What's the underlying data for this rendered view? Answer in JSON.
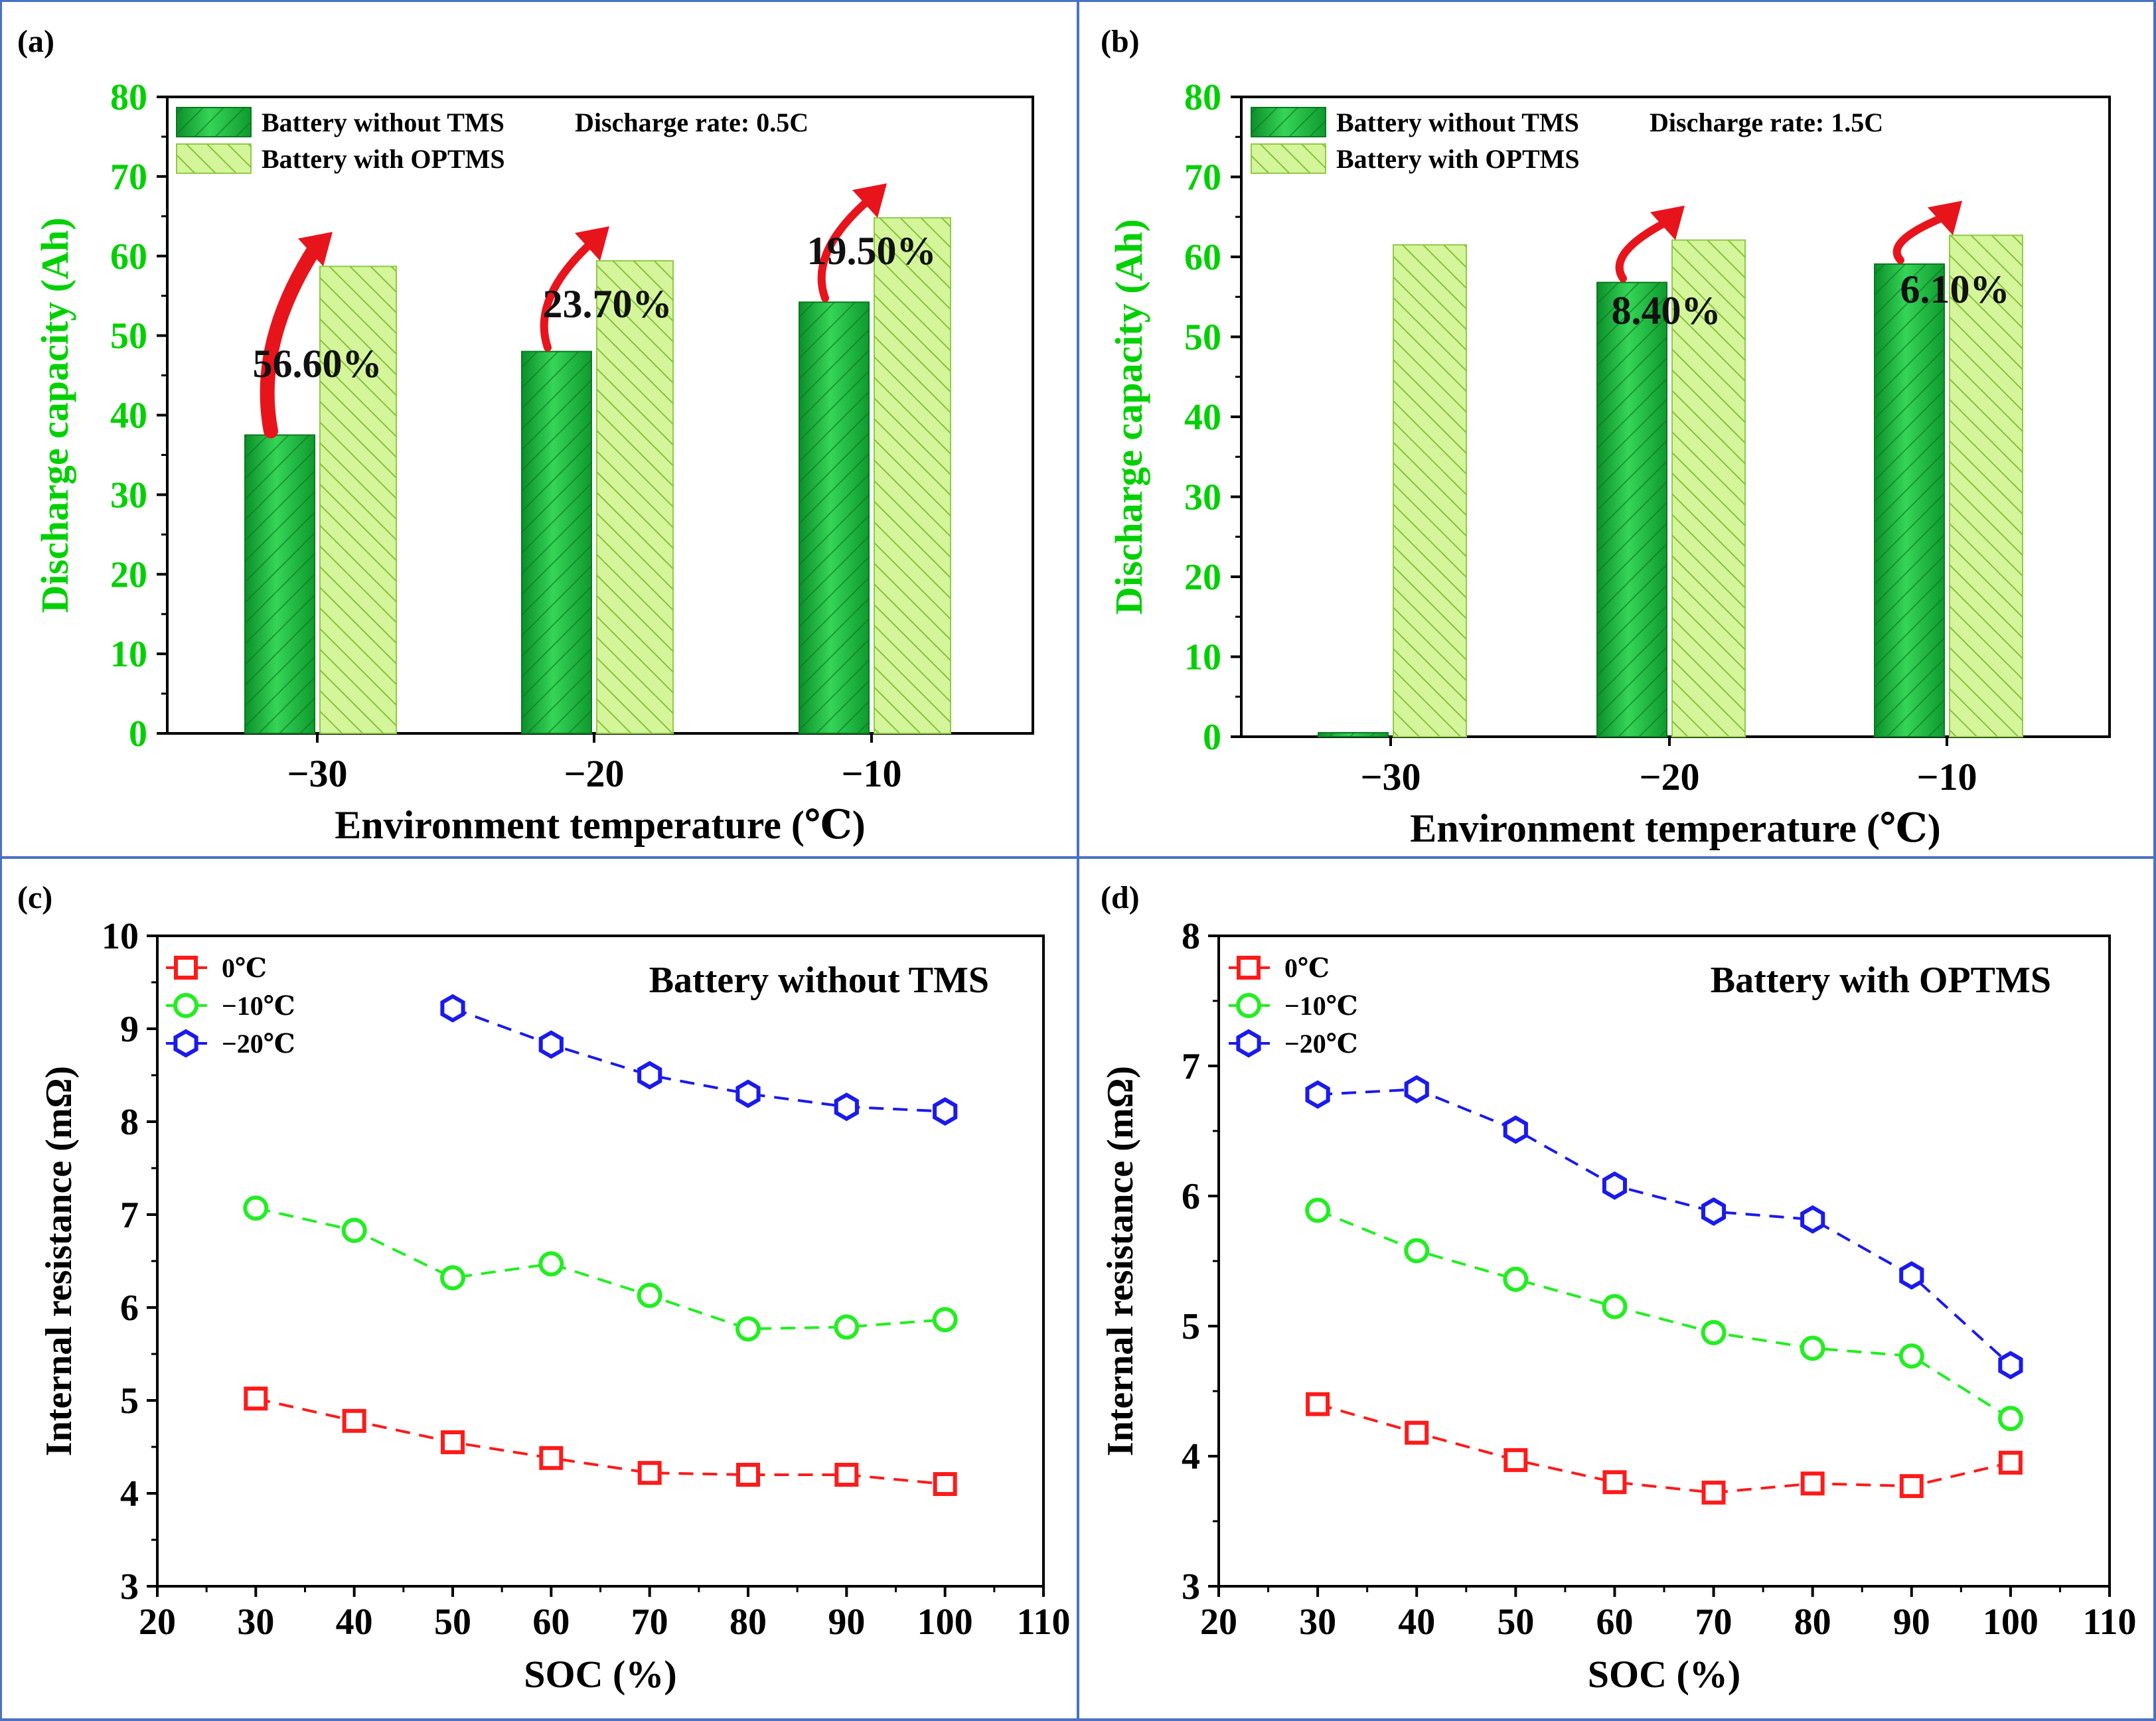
{
  "colors": {
    "panel_border": "#4a72c4",
    "green_axis": "#00d000",
    "bar_dark": "#16b43a",
    "bar_dark_stroke": "#0a7a20",
    "bar_light": "#d4f59a",
    "bar_light_stroke": "#8fcc45",
    "arrow": "#e8141c",
    "s0": "#ff1a1a",
    "s10": "#22ee22",
    "s20": "#1a1aee"
  },
  "chart_data": [
    {
      "id": "a",
      "panel_label": "(a)",
      "type": "bar",
      "categories": [
        "−30",
        "−20",
        "−10"
      ],
      "series": [
        {
          "name": "Battery without TMS",
          "values": [
            37.5,
            48,
            54.2
          ]
        },
        {
          "name": "Battery with OPTMS",
          "values": [
            58.7,
            59.4,
            64.8
          ]
        }
      ],
      "legend_note": "Discharge rate: 0.5C",
      "annotations": [
        "56.60%",
        "23.70%",
        "19.50%"
      ],
      "xlabel": "Environment temperature (℃)",
      "ylabel": "Discharge capacity (Ah)",
      "ylim": [
        0,
        80
      ],
      "yticks": [
        "0",
        "10",
        "20",
        "30",
        "40",
        "50",
        "60",
        "70",
        "80"
      ]
    },
    {
      "id": "b",
      "panel_label": "(b)",
      "type": "bar",
      "categories": [
        "−30",
        "−20",
        "−10"
      ],
      "series": [
        {
          "name": "Battery without TMS",
          "values": [
            0.5,
            56.8,
            59.1
          ]
        },
        {
          "name": "Battery with OPTMS",
          "values": [
            61.5,
            62.1,
            62.7
          ]
        }
      ],
      "legend_note": "Discharge rate: 1.5C",
      "annotations": [
        "",
        "8.40%",
        "6.10%"
      ],
      "xlabel": "Environment temperature (℃)",
      "ylabel": "Discharge capacity (Ah)",
      "ylim": [
        0,
        80
      ],
      "yticks": [
        "0",
        "10",
        "20",
        "30",
        "40",
        "50",
        "60",
        "70",
        "80"
      ]
    },
    {
      "id": "c",
      "panel_label": "(c)",
      "type": "line",
      "title": "Battery without TMS",
      "series": [
        {
          "name": "0℃",
          "marker": "square",
          "x": [
            30,
            40,
            50,
            60,
            70,
            80,
            90,
            100
          ],
          "y": [
            5.02,
            4.78,
            4.55,
            4.38,
            4.22,
            4.2,
            4.2,
            4.1
          ]
        },
        {
          "name": "−10℃",
          "marker": "circle",
          "x": [
            30,
            40,
            50,
            60,
            70,
            80,
            90,
            100
          ],
          "y": [
            7.07,
            6.83,
            6.32,
            6.47,
            6.13,
            5.77,
            5.79,
            5.87
          ]
        },
        {
          "name": "−20℃",
          "marker": "hexagon",
          "x": [
            50,
            60,
            70,
            80,
            90,
            100
          ],
          "y": [
            9.22,
            8.83,
            8.5,
            8.3,
            8.16,
            8.11
          ]
        }
      ],
      "xlabel": "SOC (%)",
      "ylabel": "Internal resistance (mΩ)",
      "xlim": [
        20,
        110
      ],
      "ylim": [
        3,
        10
      ],
      "xticks": [
        "20",
        "30",
        "40",
        "50",
        "60",
        "70",
        "80",
        "90",
        "100",
        "110"
      ],
      "yticks": [
        "3",
        "4",
        "5",
        "6",
        "7",
        "8",
        "9",
        "10"
      ]
    },
    {
      "id": "d",
      "panel_label": "(d)",
      "type": "line",
      "title": "Battery with OPTMS",
      "series": [
        {
          "name": "0℃",
          "marker": "square",
          "x": [
            30,
            40,
            50,
            60,
            70,
            80,
            90,
            100
          ],
          "y": [
            4.4,
            4.18,
            3.97,
            3.8,
            3.72,
            3.79,
            3.77,
            3.95
          ]
        },
        {
          "name": "−10℃",
          "marker": "circle",
          "x": [
            30,
            40,
            50,
            60,
            70,
            80,
            90,
            100
          ],
          "y": [
            5.89,
            5.58,
            5.36,
            5.15,
            4.95,
            4.83,
            4.77,
            4.29
          ]
        },
        {
          "name": "−20℃",
          "marker": "hexagon",
          "x": [
            30,
            40,
            50,
            60,
            70,
            80,
            90,
            100
          ],
          "y": [
            6.78,
            6.82,
            6.51,
            6.08,
            5.88,
            5.82,
            5.39,
            4.7
          ]
        }
      ],
      "xlabel": "SOC (%)",
      "ylabel": "Internal resistance (mΩ)",
      "xlim": [
        20,
        110
      ],
      "ylim": [
        3,
        8
      ],
      "xticks": [
        "20",
        "30",
        "40",
        "50",
        "60",
        "70",
        "80",
        "90",
        "100",
        "110"
      ],
      "yticks": [
        "3",
        "4",
        "5",
        "6",
        "7",
        "8"
      ]
    }
  ]
}
